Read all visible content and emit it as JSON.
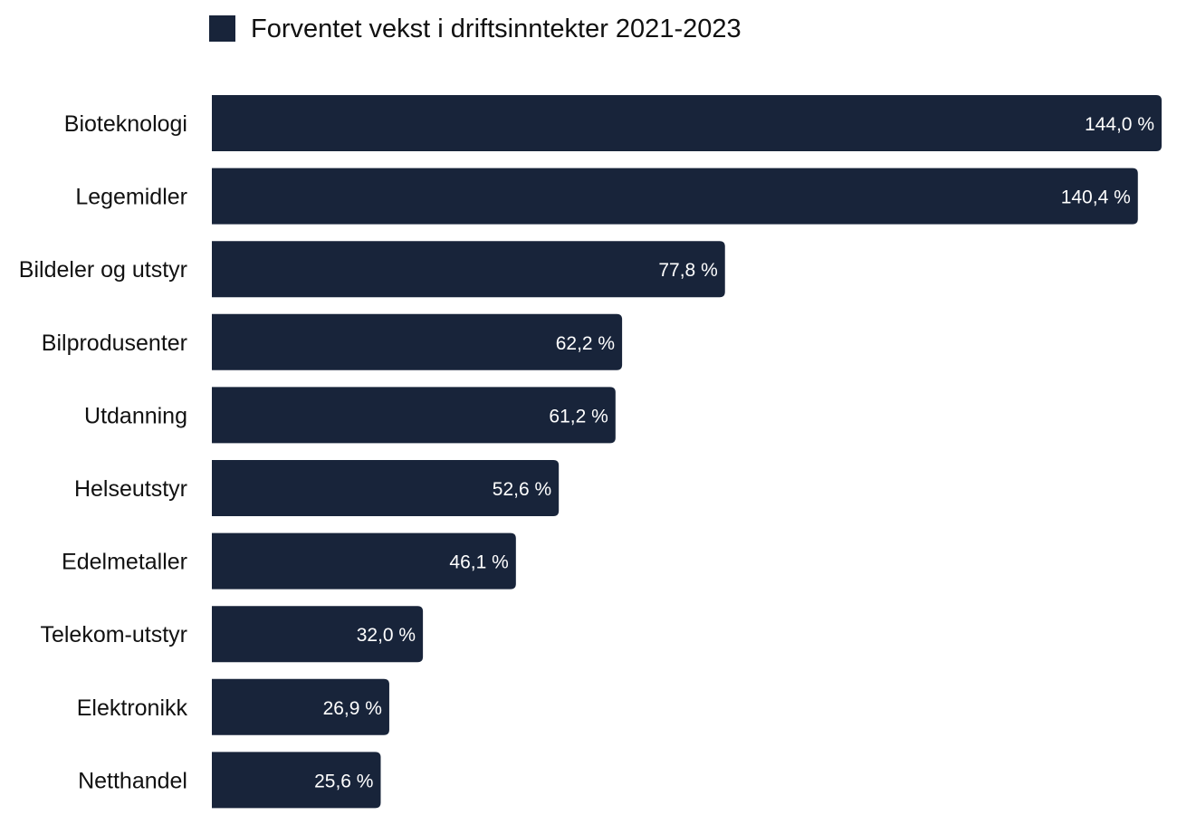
{
  "chart_data": {
    "type": "bar",
    "orientation": "horizontal",
    "legend": {
      "label": "Forventet vekst i driftsinntekter 2021-2023",
      "position": "top"
    },
    "categories": [
      "Bioteknologi",
      "Legemidler",
      "Bildeler og utstyr",
      "Bilprodusenter",
      "Utdanning",
      "Helseutstyr",
      "Edelmetaller",
      "Telekom-utstyr",
      "Elektronikk",
      "Netthandel"
    ],
    "values": [
      144.0,
      140.4,
      77.8,
      62.2,
      61.2,
      52.6,
      46.1,
      32.0,
      26.9,
      25.6
    ],
    "value_labels": [
      "144,0 %",
      "140,4 %",
      "77,8 %",
      "62,2 %",
      "61,2 %",
      "52,6 %",
      "46,1 %",
      "32,0 %",
      "26,9 %",
      "25,6 %"
    ],
    "xlim": [
      0,
      144.0
    ],
    "grid": false,
    "colors": {
      "bar": "#18243a",
      "value_label": "#ffffff",
      "text": "#111111"
    }
  }
}
